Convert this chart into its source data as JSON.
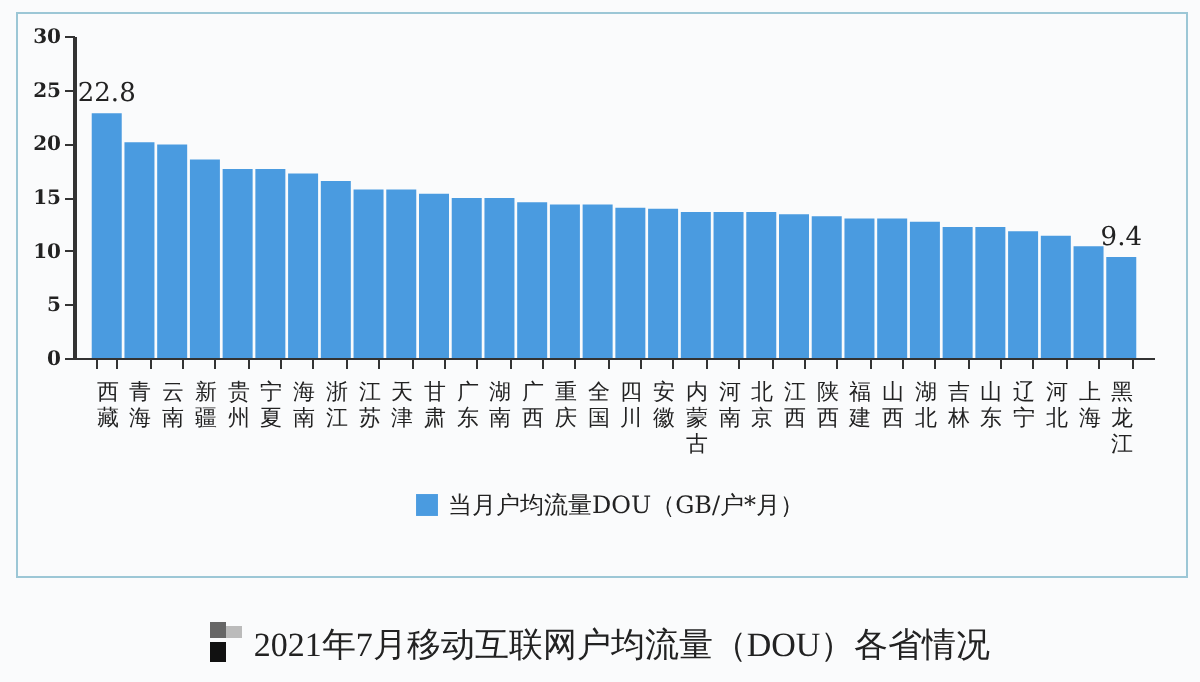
{
  "chart_data": {
    "type": "bar",
    "title": "2021年7月移动互联网户均流量（DOU）各省情况",
    "categories": [
      "西藏",
      "青海",
      "云南",
      "新疆",
      "贵州",
      "宁夏",
      "海南",
      "浙江",
      "江苏",
      "天津",
      "甘肃",
      "广东",
      "湖南",
      "广西",
      "重庆",
      "全国",
      "四川",
      "安徽",
      "内蒙古",
      "河南",
      "北京",
      "江西",
      "陕西",
      "福建",
      "山西",
      "湖北",
      "吉林",
      "山东",
      "辽宁",
      "河北",
      "上海",
      "黑龙江"
    ],
    "series": [
      {
        "name": "当月户均流量DOU（GB/户*月）",
        "color": "#4a9be0",
        "values": [
          22.8,
          20.1,
          19.9,
          18.5,
          17.6,
          17.6,
          17.2,
          16.5,
          15.7,
          15.7,
          15.3,
          14.9,
          14.9,
          14.5,
          14.3,
          14.3,
          14.0,
          13.9,
          13.6,
          13.6,
          13.6,
          13.4,
          13.2,
          13.0,
          13.0,
          12.7,
          12.2,
          12.2,
          11.8,
          11.4,
          10.4,
          9.4
        ],
        "value_labels": [
          "22.8",
          null,
          null,
          null,
          null,
          null,
          null,
          null,
          null,
          null,
          null,
          null,
          null,
          null,
          null,
          null,
          null,
          null,
          null,
          null,
          null,
          null,
          null,
          null,
          null,
          null,
          null,
          null,
          null,
          null,
          null,
          "9.4"
        ]
      }
    ],
    "ylim": [
      0,
      30
    ],
    "yticks": [
      0,
      5,
      10,
      15,
      20,
      25,
      30
    ],
    "grid": false,
    "legend": "bottom"
  }
}
